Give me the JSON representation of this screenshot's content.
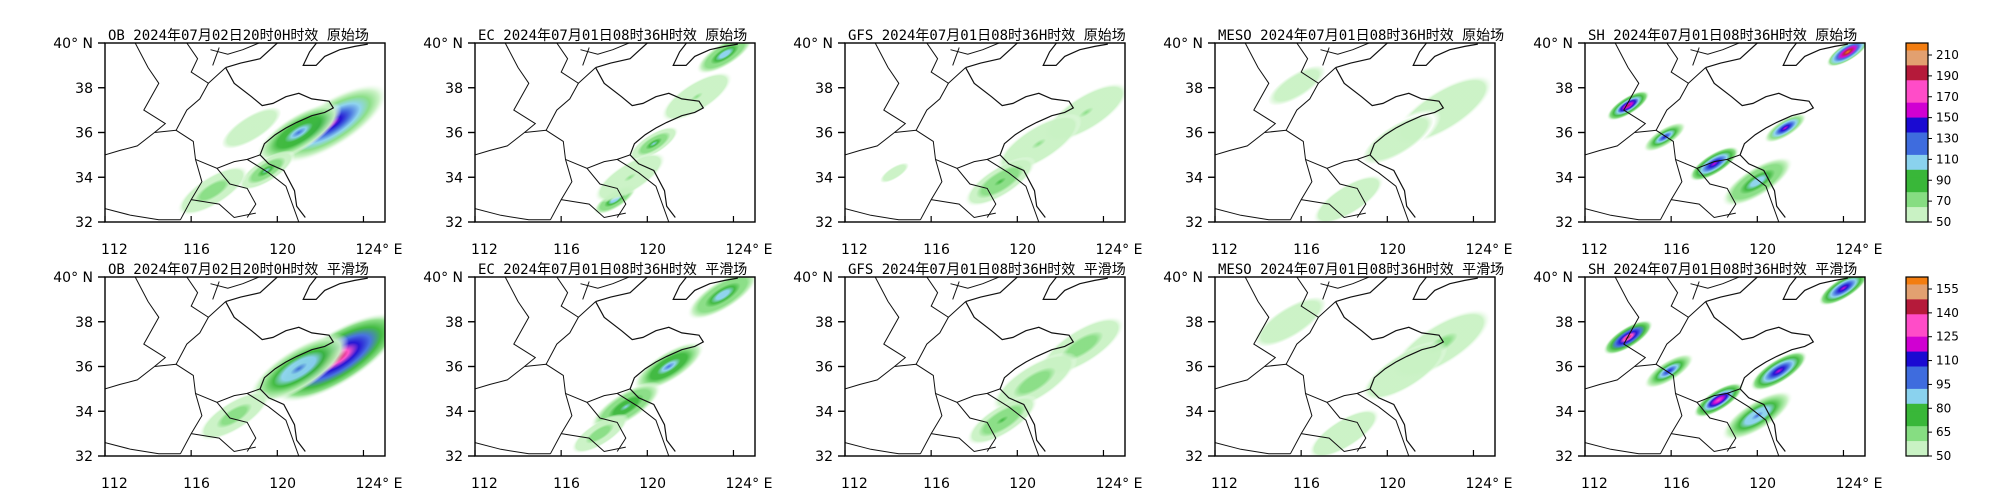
{
  "chart_data": {
    "type": "heatmap",
    "region": {
      "lon_range": [
        112,
        125
      ],
      "lat_range": [
        32,
        40
      ]
    },
    "lon_ticks": [
      "112",
      "116",
      "120",
      "124° E"
    ],
    "lat_ticks": [
      "40° N",
      "38",
      "36",
      "34",
      "32"
    ],
    "rows": [
      {
        "field": "原始场",
        "colorbar": {
          "ticks": [
            "210",
            "190",
            "170",
            "150",
            "130",
            "110",
            "90",
            "70",
            "50"
          ]
        },
        "panels": [
          {
            "title": "OB 2024年07月02日20时0H时效 原始场",
            "blobs": [
              {
                "lon": 122.5,
                "lat": 36.4,
                "v": 150,
                "s": 0.8
              },
              {
                "lon": 121.0,
                "lat": 36.0,
                "v": 120,
                "s": 0.6
              },
              {
                "lon": 119.5,
                "lat": 34.3,
                "v": 100,
                "s": 0.4
              },
              {
                "lon": 117.0,
                "lat": 33.4,
                "v": 80,
                "s": 0.5
              },
              {
                "lon": 118.8,
                "lat": 36.2,
                "v": 60,
                "s": 0.5
              }
            ]
          },
          {
            "title": "EC 2024年07月01日08时36H时效 原始场",
            "blobs": [
              {
                "lon": 123.6,
                "lat": 39.5,
                "v": 110,
                "s": 0.4
              },
              {
                "lon": 122.3,
                "lat": 37.6,
                "v": 70,
                "s": 0.5
              },
              {
                "lon": 120.3,
                "lat": 35.5,
                "v": 100,
                "s": 0.35
              },
              {
                "lon": 118.5,
                "lat": 33.0,
                "v": 110,
                "s": 0.3
              },
              {
                "lon": 119.2,
                "lat": 34.0,
                "v": 70,
                "s": 0.5
              }
            ]
          },
          {
            "title": "GFS 2024年07月01日08时36H时效 原始场",
            "blobs": [
              {
                "lon": 123.2,
                "lat": 36.9,
                "v": 70,
                "s": 0.6
              },
              {
                "lon": 121.0,
                "lat": 35.5,
                "v": 70,
                "s": 0.6
              },
              {
                "lon": 119.2,
                "lat": 33.8,
                "v": 90,
                "s": 0.5
              },
              {
                "lon": 114.3,
                "lat": 34.2,
                "v": 55,
                "s": 0.3
              }
            ]
          },
          {
            "title": "MESO 2024年07月01日08时36H时效 原始场",
            "blobs": [
              {
                "lon": 122.6,
                "lat": 37.0,
                "v": 65,
                "s": 0.7
              },
              {
                "lon": 120.5,
                "lat": 35.7,
                "v": 60,
                "s": 0.6
              },
              {
                "lon": 118.2,
                "lat": 33.0,
                "v": 65,
                "s": 0.5
              },
              {
                "lon": 115.8,
                "lat": 38.1,
                "v": 55,
                "s": 0.6
              }
            ]
          },
          {
            "title": "SH 2024年07月01日08时36H时效 原始场",
            "blobs": [
              {
                "lon": 114.0,
                "lat": 37.2,
                "v": 180,
                "s": 0.3
              },
              {
                "lon": 115.7,
                "lat": 35.8,
                "v": 140,
                "s": 0.3
              },
              {
                "lon": 118.0,
                "lat": 34.6,
                "v": 160,
                "s": 0.35
              },
              {
                "lon": 121.3,
                "lat": 36.2,
                "v": 150,
                "s": 0.3
              },
              {
                "lon": 120.0,
                "lat": 33.8,
                "v": 110,
                "s": 0.5
              },
              {
                "lon": 124.2,
                "lat": 39.6,
                "v": 210,
                "s": 0.3
              }
            ]
          }
        ]
      },
      {
        "field": "平滑场",
        "colorbar": {
          "ticks": [
            "155",
            "140",
            "125",
            "110",
            "95",
            "80",
            "65",
            "50"
          ]
        },
        "panels": [
          {
            "title": "OB 2024年07月02日20时0H时效 平滑场",
            "blobs": [
              {
                "lon": 122.8,
                "lat": 36.4,
                "v": 140,
                "s": 0.9
              },
              {
                "lon": 121.0,
                "lat": 35.9,
                "v": 100,
                "s": 0.7
              },
              {
                "lon": 118.0,
                "lat": 33.8,
                "v": 70,
                "s": 0.5
              }
            ]
          },
          {
            "title": "EC 2024年07月01日08时36H时效 平滑场",
            "blobs": [
              {
                "lon": 123.5,
                "lat": 39.2,
                "v": 90,
                "s": 0.5
              },
              {
                "lon": 121.0,
                "lat": 36.0,
                "v": 95,
                "s": 0.5
              },
              {
                "lon": 119.0,
                "lat": 34.2,
                "v": 85,
                "s": 0.5
              },
              {
                "lon": 117.8,
                "lat": 33.0,
                "v": 70,
                "s": 0.4
              }
            ]
          },
          {
            "title": "GFS 2024年07月01日08时36H时效 平滑场",
            "blobs": [
              {
                "lon": 123.0,
                "lat": 36.9,
                "v": 70,
                "s": 0.6
              },
              {
                "lon": 120.8,
                "lat": 35.3,
                "v": 70,
                "s": 0.6
              },
              {
                "lon": 119.3,
                "lat": 33.6,
                "v": 75,
                "s": 0.5
              }
            ]
          },
          {
            "title": "MESO 2024年07月01日08时36H时效 平滑场",
            "blobs": [
              {
                "lon": 122.5,
                "lat": 37.0,
                "v": 65,
                "s": 0.7
              },
              {
                "lon": 120.8,
                "lat": 35.8,
                "v": 60,
                "s": 0.6
              },
              {
                "lon": 118.0,
                "lat": 33.0,
                "v": 60,
                "s": 0.5
              },
              {
                "lon": 115.5,
                "lat": 38.0,
                "v": 55,
                "s": 0.6
              }
            ]
          },
          {
            "title": "SH 2024年07月01日08时36H时效 平滑场",
            "blobs": [
              {
                "lon": 114.0,
                "lat": 37.3,
                "v": 140,
                "s": 0.35
              },
              {
                "lon": 115.9,
                "lat": 35.8,
                "v": 110,
                "s": 0.35
              },
              {
                "lon": 118.2,
                "lat": 34.5,
                "v": 130,
                "s": 0.35
              },
              {
                "lon": 121.0,
                "lat": 35.8,
                "v": 120,
                "s": 0.4
              },
              {
                "lon": 120.0,
                "lat": 33.8,
                "v": 100,
                "s": 0.5
              },
              {
                "lon": 124.0,
                "lat": 39.5,
                "v": 120,
                "s": 0.35
              }
            ]
          }
        ]
      }
    ],
    "colormap": [
      "#ffffff",
      "#c9f2c4",
      "#86dd82",
      "#39b739",
      "#8ad2ee",
      "#3e6cde",
      "#1a0ad2",
      "#d000d2",
      "#ff4cc8",
      "#b51a3a",
      "#e2a070",
      "#f37d10"
    ]
  }
}
